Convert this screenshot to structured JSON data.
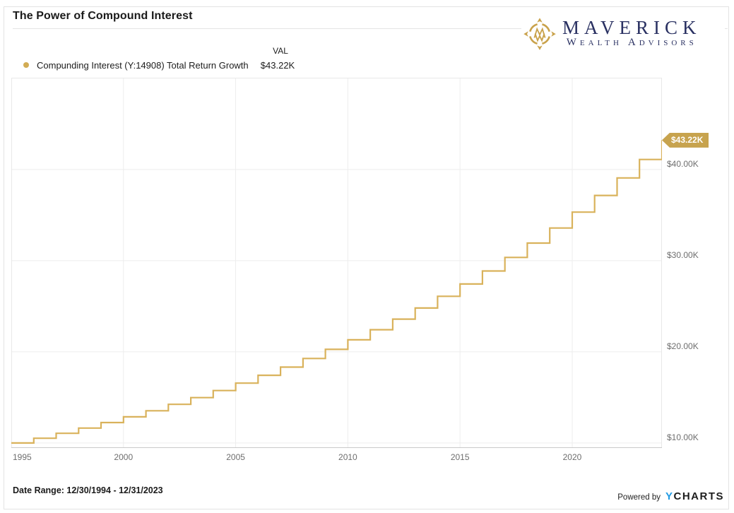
{
  "header": {
    "title": "The Power of Compound Interest"
  },
  "brand": {
    "name": "MAVERICK",
    "subtitle": "Wealth Advisors",
    "navy": "#2A3162",
    "gold": "#C9A24B",
    "icon": "compass-icon"
  },
  "legend": {
    "val_header": "VAL",
    "series_label": "Compunding Interest  (Y:14908) Total Return Growth",
    "series_value": "$43.22K",
    "dot_color": "#D2AC54"
  },
  "chart_data": {
    "type": "line",
    "step": "after",
    "title": "The Power of Compound Interest",
    "series": [
      {
        "name": "Compunding Interest (Y:14908) Total Return Growth",
        "color": "#D9B25B",
        "x": [
          1995,
          1996,
          1997,
          1998,
          1999,
          2000,
          2001,
          2002,
          2003,
          2004,
          2005,
          2006,
          2007,
          2008,
          2009,
          2010,
          2011,
          2012,
          2013,
          2014,
          2015,
          2016,
          2017,
          2018,
          2019,
          2020,
          2021,
          2022,
          2023,
          2024
        ],
        "values": [
          10000,
          10518,
          11062,
          11635,
          12237,
          12871,
          13537,
          14238,
          14975,
          15750,
          16566,
          17424,
          18326,
          19275,
          20273,
          21322,
          22426,
          23588,
          24809,
          26093,
          27444,
          28865,
          30360,
          31932,
          33585,
          35324,
          37153,
          39076,
          41100,
          43220
        ]
      }
    ],
    "x_tick_values": [
      1995,
      2000,
      2005,
      2010,
      2015,
      2020
    ],
    "x_tick_labels": [
      "1995",
      "2000",
      "2005",
      "2010",
      "2015",
      "2020"
    ],
    "y_tick_values": [
      10000,
      20000,
      30000,
      40000
    ],
    "y_tick_labels": [
      "$10.00K",
      "$20.00K",
      "$30.00K",
      "$40.00K"
    ],
    "xlim": [
      1995,
      2024
    ],
    "ylim": [
      9450,
      50070
    ],
    "grid": true,
    "grid_color": "#EDEDED",
    "border_color": "#E8E8E8",
    "axis_color": "#C9C9C9",
    "legend_position": "top-left",
    "last_value": 43220,
    "last_value_label": "$43.22K",
    "tag_color": "#C7A34E"
  },
  "footer": {
    "date_range": "Date Range: 12/30/1994 - 12/31/2023",
    "powered_by": "Powered by",
    "ycharts_y": "Y",
    "ycharts_rest": "CHARTS",
    "ycharts_blue": "#219BE4"
  }
}
